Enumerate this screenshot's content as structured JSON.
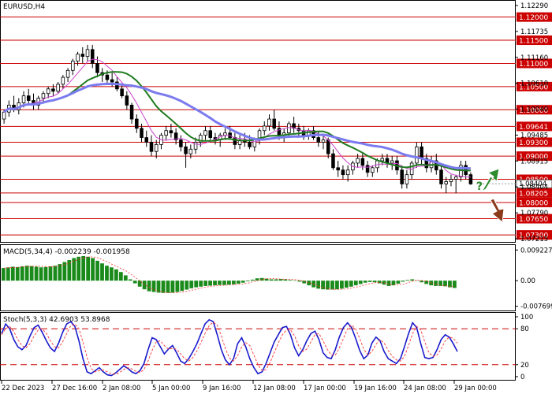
{
  "chart_data": [
    {
      "type": "candlestick",
      "title": "EURUSD,H4",
      "x_tick_labels": [
        "22 Dec 2023",
        "27 Dec 16:00",
        "2 Jan 08:00",
        "5 Jan 00:00",
        "9 Jan 16:00",
        "12 Jan 08:00",
        "17 Jan 00:00",
        "19 Jan 16:00",
        "24 Jan 08:00",
        "29 Jan 00:00"
      ],
      "ylim": [
        1.072,
        1.123
      ],
      "y_tick_labels": [
        "1.12290",
        "1.11735",
        "1.11160",
        "1.10610",
        "1.10040",
        "1.09485",
        "1.08915",
        "1.08404",
        "1.07790",
        "1.07215"
      ],
      "current_price": "1.08404",
      "support_resistance_levels": [
        {
          "label": "1.12000",
          "value": 1.12
        },
        {
          "label": "1.11500",
          "value": 1.115
        },
        {
          "label": "1.11000",
          "value": 1.11
        },
        {
          "label": "1.10500",
          "value": 1.105
        },
        {
          "label": "1.10000",
          "value": 1.1
        },
        {
          "label": "1.09641",
          "value": 1.09641
        },
        {
          "label": "1.09300",
          "value": 1.093
        },
        {
          "label": "1.09000",
          "value": 1.09
        },
        {
          "label": "1.08500",
          "value": 1.085
        },
        {
          "label": "1.08205",
          "value": 1.08205
        },
        {
          "label": "1.08000",
          "value": 1.08
        },
        {
          "label": "1.07650",
          "value": 1.0765
        },
        {
          "label": "1.07300",
          "value": 1.073
        }
      ],
      "candles": [
        [
          1.098,
          1.1,
          1.097,
          1.0995
        ],
        [
          1.0995,
          1.102,
          1.0985,
          1.101
        ],
        [
          1.101,
          1.103,
          1.0995,
          1.1
        ],
        [
          1.1,
          1.1025,
          1.099,
          1.1015
        ],
        [
          1.1015,
          1.104,
          1.1005,
          1.103
        ],
        [
          1.103,
          1.1045,
          1.101,
          1.102
        ],
        [
          1.102,
          1.1035,
          1.1,
          1.101
        ],
        [
          1.101,
          1.103,
          1.1,
          1.1025
        ],
        [
          1.1025,
          1.104,
          1.1015,
          1.1035
        ],
        [
          1.1035,
          1.105,
          1.1025,
          1.1045
        ],
        [
          1.1045,
          1.1055,
          1.103,
          1.104
        ],
        [
          1.104,
          1.106,
          1.1035,
          1.1055
        ],
        [
          1.1055,
          1.1075,
          1.1045,
          1.107
        ],
        [
          1.107,
          1.109,
          1.106,
          1.1085
        ],
        [
          1.1085,
          1.111,
          1.1075,
          1.1105
        ],
        [
          1.1105,
          1.1125,
          1.1095,
          1.112
        ],
        [
          1.112,
          1.1135,
          1.11,
          1.1115
        ],
        [
          1.1115,
          1.114,
          1.1105,
          1.113
        ],
        [
          1.113,
          1.114,
          1.109,
          1.11
        ],
        [
          1.11,
          1.1115,
          1.107,
          1.108
        ],
        [
          1.108,
          1.109,
          1.106,
          1.1075
        ],
        [
          1.1075,
          1.1085,
          1.1055,
          1.1065
        ],
        [
          1.1065,
          1.108,
          1.105,
          1.106
        ],
        [
          1.106,
          1.107,
          1.104,
          1.1045
        ],
        [
          1.1045,
          1.1055,
          1.1025,
          1.103
        ],
        [
          1.103,
          1.104,
          1.1,
          1.101
        ],
        [
          1.101,
          1.1015,
          1.097,
          1.098
        ],
        [
          1.098,
          1.099,
          1.095,
          1.096
        ],
        [
          1.096,
          1.097,
          1.093,
          1.094
        ],
        [
          1.094,
          1.0955,
          1.092,
          1.093
        ],
        [
          1.093,
          1.0945,
          1.09,
          1.091
        ],
        [
          1.091,
          1.0935,
          1.0895,
          1.0925
        ],
        [
          1.0925,
          1.095,
          1.0915,
          1.0945
        ],
        [
          1.0945,
          1.0965,
          1.0935,
          1.0955
        ],
        [
          1.0955,
          1.097,
          1.094,
          1.095
        ],
        [
          1.095,
          1.096,
          1.0925,
          1.0935
        ],
        [
          1.0935,
          1.0945,
          1.091,
          1.092
        ],
        [
          1.092,
          1.093,
          1.0875,
          1.0905
        ],
        [
          1.0905,
          1.0925,
          1.0895,
          1.0915
        ],
        [
          1.0915,
          1.094,
          1.0905,
          1.093
        ],
        [
          1.093,
          1.095,
          1.092,
          1.0945
        ],
        [
          1.0945,
          1.0965,
          1.0935,
          1.0955
        ],
        [
          1.0955,
          1.0965,
          1.0935,
          1.094
        ],
        [
          1.094,
          1.095,
          1.0925,
          1.0935
        ],
        [
          1.0935,
          1.095,
          1.092,
          1.0945
        ],
        [
          1.0945,
          1.096,
          1.0935,
          1.095
        ],
        [
          1.095,
          1.0965,
          1.0935,
          1.094
        ],
        [
          1.094,
          1.095,
          1.0915,
          1.0925
        ],
        [
          1.0925,
          1.0945,
          1.0915,
          1.0935
        ],
        [
          1.0935,
          1.095,
          1.092,
          1.093
        ],
        [
          1.093,
          1.0945,
          1.0915,
          1.092
        ],
        [
          1.092,
          1.094,
          1.091,
          1.0935
        ],
        [
          1.0935,
          1.096,
          1.0925,
          1.0955
        ],
        [
          1.0955,
          1.0975,
          1.0945,
          1.0965
        ],
        [
          1.0965,
          1.099,
          1.0955,
          1.098
        ],
        [
          1.098,
          1.1,
          1.0955,
          1.096
        ],
        [
          1.096,
          1.0975,
          1.0935,
          1.0945
        ],
        [
          1.0945,
          1.096,
          1.093,
          1.095
        ],
        [
          1.095,
          1.0975,
          1.094,
          1.097
        ],
        [
          1.097,
          1.0985,
          1.095,
          1.096
        ],
        [
          1.096,
          1.097,
          1.094,
          1.0955
        ],
        [
          1.0955,
          1.0965,
          1.0935,
          1.0945
        ],
        [
          1.0945,
          1.096,
          1.0935,
          1.0955
        ],
        [
          1.0955,
          1.0965,
          1.0935,
          1.094
        ],
        [
          1.094,
          1.0955,
          1.092,
          1.093
        ],
        [
          1.093,
          1.0945,
          1.0915,
          1.0935
        ],
        [
          1.0935,
          1.094,
          1.0895,
          1.0905
        ],
        [
          1.0905,
          1.0915,
          1.087,
          1.0875
        ],
        [
          1.0875,
          1.089,
          1.0855,
          1.087
        ],
        [
          1.087,
          1.088,
          1.085,
          1.086
        ],
        [
          1.086,
          1.088,
          1.0845,
          1.087
        ],
        [
          1.087,
          1.089,
          1.086,
          1.0885
        ],
        [
          1.0885,
          1.0905,
          1.0875,
          1.0895
        ],
        [
          1.0895,
          1.0905,
          1.087,
          1.088
        ],
        [
          1.088,
          1.089,
          1.0855,
          1.0865
        ],
        [
          1.0865,
          1.088,
          1.0855,
          1.0875
        ],
        [
          1.0875,
          1.0895,
          1.0865,
          1.089
        ],
        [
          1.089,
          1.0905,
          1.088,
          1.0895
        ],
        [
          1.0895,
          1.0905,
          1.0875,
          1.0885
        ],
        [
          1.0885,
          1.09,
          1.087,
          1.089
        ],
        [
          1.089,
          1.09,
          1.086,
          1.087
        ],
        [
          1.087,
          1.088,
          1.083,
          1.084
        ],
        [
          1.084,
          1.087,
          1.083,
          1.086
        ],
        [
          1.086,
          1.089,
          1.085,
          1.0885
        ],
        [
          1.0885,
          1.093,
          1.0875,
          1.092
        ],
        [
          1.092,
          1.093,
          1.088,
          1.0895
        ],
        [
          1.0895,
          1.0905,
          1.0865,
          1.0875
        ],
        [
          1.0875,
          1.09,
          1.0865,
          1.089
        ],
        [
          1.089,
          1.0905,
          1.086,
          1.087
        ],
        [
          1.087,
          1.088,
          1.083,
          1.084
        ],
        [
          1.084,
          1.0855,
          1.082,
          1.0845
        ],
        [
          1.0845,
          1.086,
          1.0835,
          1.085
        ],
        [
          1.085,
          1.086,
          1.082,
          1.0855
        ],
        [
          1.0855,
          1.089,
          1.0845,
          1.088
        ],
        [
          1.088,
          1.089,
          1.085,
          1.086
        ],
        [
          1.086,
          1.0865,
          1.0838,
          1.084
        ]
      ],
      "overlays": [
        {
          "indicator": "moving-average-fast",
          "color": "#cc44cc"
        },
        {
          "indicator": "moving-average-mid",
          "color": "#1f7a1f"
        },
        {
          "indicator": "moving-average-slow",
          "color": "#7b7bf0"
        }
      ],
      "forecast_arrows": [
        {
          "direction": "up",
          "color": "#2e8b2e"
        },
        {
          "direction": "down",
          "color": "#8b3a1a"
        }
      ],
      "forecast_mark": "?"
    },
    {
      "type": "bar",
      "title": "MACD(5,34,4) -0.002239 -0.001958",
      "ylim": [
        -0.0085,
        0.01
      ],
      "y_tick_labels": [
        "0.009227",
        "0.00",
        "-0.007699"
      ],
      "values": [
        0.0038,
        0.004,
        0.0042,
        0.0041,
        0.0043,
        0.0045,
        0.0044,
        0.0042,
        0.004,
        0.0041,
        0.0043,
        0.0045,
        0.005,
        0.0056,
        0.0062,
        0.0068,
        0.0072,
        0.0074,
        0.0072,
        0.0068,
        0.006,
        0.0052,
        0.0045,
        0.004,
        0.0034,
        0.0026,
        0.0016,
        0.0004,
        -0.0008,
        -0.0018,
        -0.0026,
        -0.0032,
        -0.0034,
        -0.0036,
        -0.0037,
        -0.0037,
        -0.0036,
        -0.0034,
        -0.0031,
        -0.0027,
        -0.0023,
        -0.002,
        -0.0018,
        -0.0016,
        -0.0015,
        -0.0014,
        -0.0013,
        -0.0013,
        -0.0012,
        -0.0011,
        -0.0009,
        -0.0006,
        -0.0002,
        0.0003,
        0.0007,
        0.0008,
        0.0006,
        0.0004,
        0.0004,
        0.0005,
        0.0004,
        0.0002,
        0.0001,
        -0.0003,
        -0.0008,
        -0.0014,
        -0.002,
        -0.0024,
        -0.0026,
        -0.0027,
        -0.0027,
        -0.0026,
        -0.0024,
        -0.0021,
        -0.0018,
        -0.0014,
        -0.001,
        -0.0006,
        -0.0004,
        -0.0005,
        -0.0008,
        -0.0012,
        -0.0016,
        -0.0014,
        -0.0009,
        -0.0003,
        0.0002,
        0.0004,
        0.0001,
        -0.0005,
        -0.001,
        -0.0014,
        -0.0016,
        -0.0016,
        -0.0017,
        -0.002,
        -0.0022
      ],
      "signal_line_color": "#ff3333"
    },
    {
      "type": "line",
      "title": "Stoch(5,3,3) 42.6903 53.8968",
      "ylim": [
        0,
        100
      ],
      "y_tick_labels": [
        "100",
        "80",
        "20",
        "0"
      ],
      "reference_levels": [
        80,
        20
      ],
      "series": [
        {
          "color": "#1a1acc",
          "values": [
            72,
            88,
            80,
            62,
            50,
            45,
            52,
            68,
            82,
            86,
            74,
            60,
            48,
            42,
            56,
            74,
            88,
            92,
            84,
            60,
            30,
            8,
            5,
            10,
            15,
            8,
            3,
            2,
            6,
            12,
            18,
            14,
            8,
            5,
            10,
            22,
            45,
            65,
            62,
            50,
            38,
            46,
            52,
            40,
            26,
            22,
            30,
            42,
            55,
            72,
            88,
            95,
            92,
            70,
            45,
            28,
            20,
            30,
            55,
            65,
            50,
            30,
            15,
            5,
            8,
            22,
            40,
            58,
            70,
            82,
            84,
            70,
            48,
            35,
            45,
            60,
            72,
            76,
            62,
            40,
            32,
            30,
            45,
            66,
            82,
            90,
            82,
            64,
            44,
            30,
            36,
            56,
            66,
            60,
            42,
            30,
            26,
            22,
            30,
            50,
            72,
            90,
            82,
            55,
            32,
            30,
            32,
            45,
            62,
            70,
            66,
            55,
            42
          ]
        },
        {
          "color": "#ff3333",
          "values": [
            70,
            80,
            84,
            75,
            62,
            52,
            48,
            55,
            68,
            78,
            80,
            72,
            60,
            50,
            48,
            58,
            72,
            85,
            88,
            80,
            58,
            32,
            14,
            8,
            10,
            11,
            8,
            5,
            4,
            7,
            12,
            15,
            13,
            9,
            7,
            12,
            26,
            44,
            58,
            60,
            52,
            46,
            47,
            46,
            38,
            30,
            26,
            32,
            43,
            57,
            72,
            85,
            91,
            86,
            68,
            47,
            31,
            26,
            35,
            50,
            57,
            52,
            36,
            20,
            10,
            12,
            24,
            40,
            56,
            70,
            78,
            78,
            68,
            52,
            42,
            46,
            58,
            70,
            72,
            60,
            46,
            36,
            36,
            48,
            64,
            80,
            86,
            80,
            64,
            46,
            36,
            42,
            54,
            62,
            56,
            44,
            34,
            28,
            26,
            34,
            52,
            72,
            84,
            78,
            58,
            40,
            34,
            36,
            46,
            60,
            66,
            64,
            56
          ]
        }
      ]
    }
  ]
}
